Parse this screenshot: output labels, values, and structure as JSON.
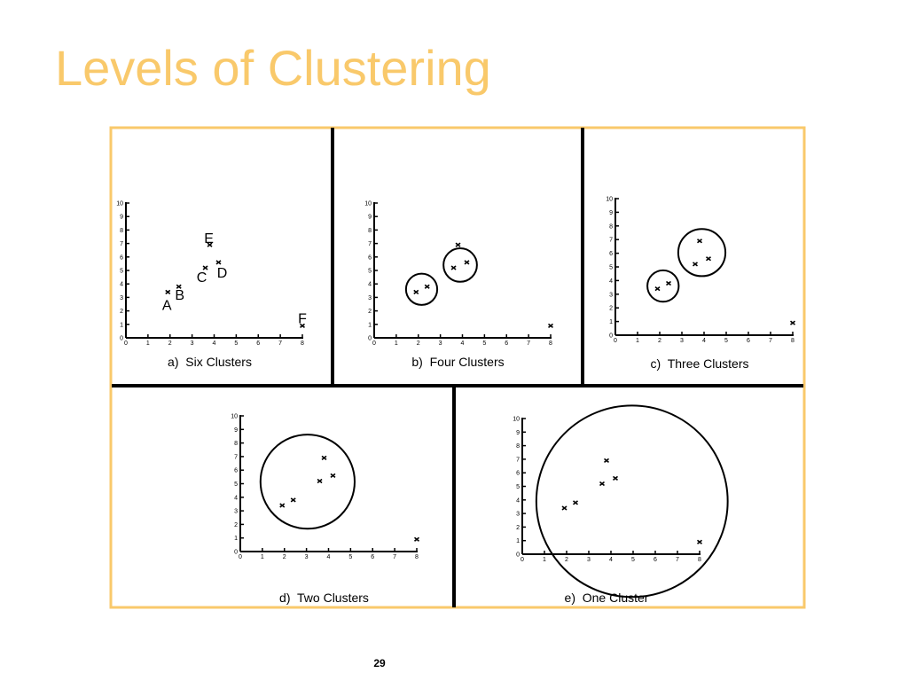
{
  "title": "Levels of Clustering",
  "page_number": "29",
  "chart_data": [
    {
      "type": "scatter",
      "title": "a)  Six Clusters",
      "x": [
        1.9,
        2.4,
        3.6,
        4.2,
        3.8,
        8
      ],
      "values": [
        3.4,
        3.8,
        5.2,
        5.6,
        6.9,
        0.9
      ],
      "point_labels": [
        "A",
        "B",
        "C",
        "D",
        "E",
        "F"
      ],
      "xlim": [
        0,
        8
      ],
      "ylim": [
        0,
        10
      ],
      "xticks": [
        0,
        1,
        2,
        3,
        4,
        5,
        6,
        7,
        8
      ],
      "yticks": [
        0,
        1,
        2,
        3,
        4,
        5,
        6,
        7,
        8,
        9,
        10
      ]
    },
    {
      "type": "scatter",
      "title": "b)  Four Clusters",
      "x": [
        1.9,
        2.4,
        3.6,
        4.2,
        3.8,
        8
      ],
      "values": [
        3.4,
        3.8,
        5.2,
        5.6,
        6.9,
        0.9
      ],
      "clusters": [
        [
          0,
          1
        ],
        [
          2,
          3
        ]
      ],
      "xlim": [
        0,
        8
      ],
      "ylim": [
        0,
        10
      ],
      "xticks": [
        0,
        1,
        2,
        3,
        4,
        5,
        6,
        7,
        8
      ],
      "yticks": [
        0,
        1,
        2,
        3,
        4,
        5,
        6,
        7,
        8,
        9,
        10
      ]
    },
    {
      "type": "scatter",
      "title": "c)  Three Clusters",
      "x": [
        1.9,
        2.4,
        3.6,
        4.2,
        3.8,
        8
      ],
      "values": [
        3.4,
        3.8,
        5.2,
        5.6,
        6.9,
        0.9
      ],
      "clusters": [
        [
          0,
          1
        ],
        [
          2,
          3,
          4
        ]
      ],
      "xlim": [
        0,
        8
      ],
      "ylim": [
        0,
        10
      ],
      "xticks": [
        0,
        1,
        2,
        3,
        4,
        5,
        6,
        7,
        8
      ],
      "yticks": [
        0,
        1,
        2,
        3,
        4,
        5,
        6,
        7,
        8,
        9,
        10
      ]
    },
    {
      "type": "scatter",
      "title": "d)  Two Clusters",
      "x": [
        1.9,
        2.4,
        3.6,
        4.2,
        3.8,
        8
      ],
      "values": [
        3.4,
        3.8,
        5.2,
        5.6,
        6.9,
        0.9
      ],
      "clusters": [
        [
          0,
          1,
          2,
          3,
          4
        ]
      ],
      "xlim": [
        0,
        8
      ],
      "ylim": [
        0,
        10
      ],
      "xticks": [
        0,
        1,
        2,
        3,
        4,
        5,
        6,
        7,
        8
      ],
      "yticks": [
        0,
        1,
        2,
        3,
        4,
        5,
        6,
        7,
        8,
        9,
        10
      ]
    },
    {
      "type": "scatter",
      "title": "e)  One Cluster",
      "x": [
        1.9,
        2.4,
        3.6,
        4.2,
        3.8,
        8
      ],
      "values": [
        3.4,
        3.8,
        5.2,
        5.6,
        6.9,
        0.9
      ],
      "clusters": [
        [
          0,
          1,
          2,
          3,
          4,
          5
        ]
      ],
      "xlim": [
        0,
        8
      ],
      "ylim": [
        0,
        10
      ],
      "xticks": [
        0,
        1,
        2,
        3,
        4,
        5,
        6,
        7,
        8
      ],
      "yticks": [
        0,
        1,
        2,
        3,
        4,
        5,
        6,
        7,
        8,
        9,
        10
      ]
    }
  ]
}
